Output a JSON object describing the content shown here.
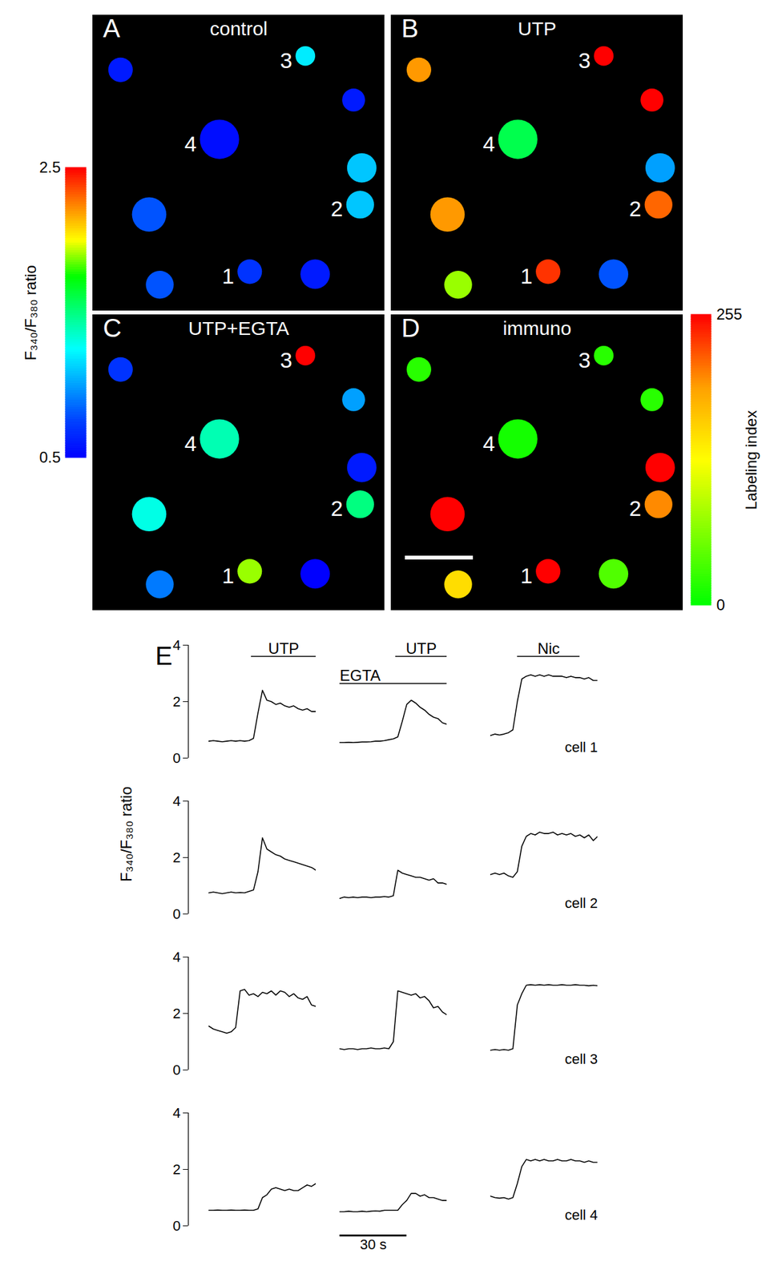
{
  "chart_data": [
    {
      "type": "scatter",
      "panel": "A",
      "title": "control",
      "tick_labels": false,
      "xlim": [
        0,
        357
      ],
      "ylim": [
        362,
        0
      ],
      "x": [
        34,
        260,
        319,
        155,
        329,
        327,
        69,
        82,
        192,
        272
      ],
      "y": [
        67,
        50,
        104,
        152,
        187,
        232,
        244,
        330,
        314,
        317
      ],
      "size": [
        15,
        12,
        14,
        24,
        18,
        17,
        21,
        17,
        15,
        18
      ],
      "cell_labels": [
        null,
        "3",
        null,
        "4",
        null,
        "2",
        null,
        null,
        "1",
        null
      ],
      "values": [
        0.6,
        1.2,
        0.6,
        0.55,
        1.1,
        1.1,
        0.8,
        0.8,
        0.7,
        0.6
      ],
      "colorbar": {
        "label": "F₃₄₀/F₃₈₀ ratio",
        "range": [
          0.5,
          2.5
        ],
        "ticks": [
          0.5,
          2.5
        ]
      }
    },
    {
      "type": "scatter",
      "panel": "B",
      "title": "UTP",
      "tick_labels": false,
      "xlim": [
        0,
        357
      ],
      "ylim": [
        362,
        0
      ],
      "x": [
        34,
        260,
        319,
        155,
        329,
        327,
        69,
        82,
        192,
        272
      ],
      "y": [
        67,
        50,
        104,
        152,
        187,
        232,
        244,
        330,
        314,
        317
      ],
      "size": [
        15,
        12,
        14,
        24,
        18,
        17,
        21,
        17,
        15,
        18
      ],
      "cell_labels": [
        null,
        "3",
        null,
        "4",
        null,
        "2",
        null,
        null,
        "1",
        null
      ],
      "values": [
        2.2,
        2.5,
        2.5,
        1.6,
        1.0,
        2.3,
        2.2,
        1.9,
        2.4,
        0.8
      ]
    },
    {
      "type": "scatter",
      "panel": "C",
      "title": "UTP+EGTA",
      "tick_labels": false,
      "xlim": [
        0,
        357
      ],
      "ylim": [
        362,
        0
      ],
      "x": [
        34,
        260,
        319,
        155,
        329,
        327,
        69,
        82,
        192,
        272
      ],
      "y": [
        67,
        50,
        104,
        152,
        187,
        232,
        244,
        330,
        314,
        317
      ],
      "size": [
        15,
        12,
        14,
        24,
        18,
        17,
        21,
        17,
        15,
        18
      ],
      "cell_labels": [
        null,
        "3",
        null,
        "4",
        null,
        "2",
        null,
        null,
        "1",
        null
      ],
      "values": [
        0.7,
        2.5,
        1.0,
        1.4,
        0.6,
        1.5,
        1.3,
        0.9,
        1.9,
        0.5
      ]
    },
    {
      "type": "scatter",
      "panel": "D",
      "title": "immuno",
      "tick_labels": false,
      "xlim": [
        0,
        357
      ],
      "ylim": [
        362,
        0
      ],
      "x": [
        34,
        260,
        319,
        155,
        329,
        327,
        69,
        82,
        192,
        272
      ],
      "y": [
        67,
        50,
        104,
        152,
        187,
        232,
        244,
        330,
        314,
        317
      ],
      "size": [
        15,
        12,
        14,
        24,
        18,
        17,
        21,
        17,
        15,
        18
      ],
      "cell_labels": [
        null,
        "3",
        null,
        "4",
        null,
        "2",
        null,
        null,
        "1",
        null
      ],
      "values": [
        20,
        20,
        20,
        10,
        255,
        200,
        255,
        150,
        255,
        40
      ],
      "colorbar": {
        "label": "Labeling index",
        "range": [
          0,
          255
        ],
        "ticks": [
          0,
          255
        ]
      }
    },
    {
      "type": "line",
      "panel": "E",
      "ylabel": "F₃₄₀/F₃₈₀ ratio",
      "color": "#000000",
      "tick_labels": "y",
      "xlim": [
        0,
        48
      ],
      "ylim": [
        0,
        4
      ],
      "yticks": [
        0,
        2,
        4
      ],
      "x": [
        0,
        2,
        4,
        6,
        8,
        10,
        12,
        14,
        16,
        18,
        20,
        22,
        24,
        26,
        28,
        30,
        32,
        34,
        36,
        38,
        40,
        42,
        44,
        46,
        48
      ],
      "columns": [
        {
          "stimuli": [
            {
              "label": "UTP",
              "start": 19,
              "end": 48
            }
          ],
          "series": [
            {
              "name": "cell 1",
              "values": [
                0.6,
                0.62,
                0.6,
                0.58,
                0.6,
                0.62,
                0.6,
                0.62,
                0.6,
                0.62,
                0.7,
                1.6,
                2.4,
                2.05,
                2.0,
                1.9,
                1.95,
                1.85,
                1.8,
                1.85,
                1.75,
                1.7,
                1.75,
                1.65,
                1.65
              ]
            },
            {
              "name": "cell 2",
              "values": [
                0.75,
                0.78,
                0.75,
                0.72,
                0.75,
                0.78,
                0.75,
                0.76,
                0.75,
                0.8,
                0.85,
                1.5,
                2.7,
                2.3,
                2.2,
                2.1,
                2.05,
                1.95,
                1.9,
                1.85,
                1.8,
                1.75,
                1.7,
                1.65,
                1.55
              ]
            },
            {
              "name": "cell 3",
              "values": [
                1.55,
                1.45,
                1.4,
                1.35,
                1.3,
                1.35,
                1.5,
                2.8,
                2.85,
                2.65,
                2.7,
                2.6,
                2.75,
                2.7,
                2.8,
                2.65,
                2.8,
                2.75,
                2.6,
                2.7,
                2.55,
                2.5,
                2.6,
                2.3,
                2.25
              ]
            },
            {
              "name": "cell 4",
              "values": [
                0.55,
                0.55,
                0.56,
                0.55,
                0.55,
                0.56,
                0.55,
                0.55,
                0.56,
                0.55,
                0.55,
                0.6,
                1.0,
                1.1,
                1.3,
                1.35,
                1.3,
                1.25,
                1.3,
                1.25,
                1.25,
                1.35,
                1.45,
                1.4,
                1.5
              ]
            }
          ]
        },
        {
          "stimuli": [
            {
              "label": "UTP",
              "start": 25,
              "end": 48
            },
            {
              "label": "EGTA",
              "start": 0,
              "end": 48
            }
          ],
          "series": [
            {
              "name": "cell 1",
              "values": [
                0.55,
                0.55,
                0.56,
                0.55,
                0.56,
                0.57,
                0.57,
                0.58,
                0.6,
                0.6,
                0.62,
                0.65,
                0.68,
                0.75,
                1.3,
                1.9,
                2.05,
                1.95,
                1.8,
                1.7,
                1.55,
                1.45,
                1.4,
                1.25,
                1.2
              ]
            },
            {
              "name": "cell 2",
              "values": [
                0.55,
                0.6,
                0.58,
                0.6,
                0.58,
                0.6,
                0.6,
                0.58,
                0.6,
                0.6,
                0.62,
                0.6,
                0.65,
                1.55,
                1.45,
                1.4,
                1.35,
                1.3,
                1.3,
                1.25,
                1.2,
                1.25,
                1.1,
                1.1,
                1.05
              ]
            },
            {
              "name": "cell 3",
              "values": [
                0.75,
                0.72,
                0.75,
                0.75,
                0.72,
                0.75,
                0.75,
                0.78,
                0.75,
                0.75,
                0.78,
                0.75,
                1.0,
                2.8,
                2.75,
                2.7,
                2.65,
                2.7,
                2.55,
                2.6,
                2.45,
                2.2,
                2.25,
                2.05,
                1.95
              ]
            },
            {
              "name": "cell 4",
              "values": [
                0.5,
                0.5,
                0.52,
                0.5,
                0.5,
                0.52,
                0.5,
                0.52,
                0.53,
                0.52,
                0.55,
                0.55,
                0.55,
                0.55,
                0.75,
                0.9,
                1.15,
                1.15,
                1.05,
                1.1,
                1.0,
                1.0,
                0.95,
                0.9,
                0.9
              ]
            }
          ]
        },
        {
          "stimuli": [
            {
              "label": "Nic",
              "start": 12,
              "end": 40
            }
          ],
          "series": [
            {
              "name": "cell 1",
              "values": [
                0.8,
                0.85,
                0.82,
                0.85,
                0.9,
                1.0,
                2.0,
                2.8,
                2.9,
                2.95,
                2.9,
                2.95,
                2.9,
                2.95,
                2.9,
                2.9,
                2.9,
                2.85,
                2.9,
                2.85,
                2.85,
                2.8,
                2.85,
                2.75,
                2.75
              ]
            },
            {
              "name": "cell 2",
              "values": [
                1.4,
                1.45,
                1.4,
                1.45,
                1.35,
                1.3,
                1.5,
                2.4,
                2.75,
                2.85,
                2.8,
                2.9,
                2.85,
                2.85,
                2.9,
                2.8,
                2.85,
                2.8,
                2.85,
                2.75,
                2.8,
                2.7,
                2.8,
                2.6,
                2.75
              ]
            },
            {
              "name": "cell 3",
              "values": [
                0.7,
                0.72,
                0.7,
                0.72,
                0.7,
                0.75,
                2.3,
                2.7,
                3.0,
                3.02,
                3.0,
                3.02,
                3.0,
                3.02,
                3.0,
                3.0,
                3.02,
                3.0,
                3.0,
                3.02,
                3.0,
                3.0,
                2.98,
                3.0,
                2.98
              ]
            },
            {
              "name": "cell 4",
              "values": [
                1.05,
                1.0,
                0.98,
                1.0,
                0.95,
                1.0,
                1.5,
                2.1,
                2.35,
                2.3,
                2.35,
                2.3,
                2.35,
                2.3,
                2.3,
                2.35,
                2.3,
                2.3,
                2.35,
                2.3,
                2.3,
                2.25,
                2.3,
                2.25,
                2.25
              ]
            }
          ]
        }
      ],
      "scalebar": {
        "value": 30,
        "label": "30 s"
      }
    }
  ]
}
